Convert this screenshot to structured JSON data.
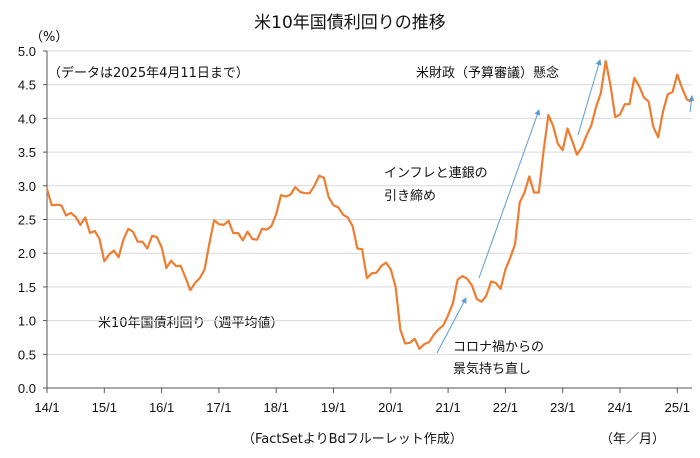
{
  "chart_data": {
    "type": "line",
    "title": "米10年国債利回りの推移",
    "ylabel": "（%）",
    "xlabel": "（年／月）",
    "source": "（FactSetよりBdフルーレット作成）",
    "note": "（データは2025年4月11日まで）",
    "ylim": [
      0,
      5.0
    ],
    "yticks": [
      "0.0",
      "0.5",
      "1.0",
      "1.5",
      "2.0",
      "2.5",
      "3.0",
      "3.5",
      "4.0",
      "4.5",
      "5.0"
    ],
    "xticks": [
      "14/1",
      "15/1",
      "16/1",
      "17/1",
      "18/1",
      "19/1",
      "20/1",
      "21/1",
      "22/1",
      "23/1",
      "24/1",
      "25/1"
    ],
    "grid": true,
    "series": [
      {
        "name": "米10年国債利回り（週平均値）",
        "color": "#ED7D31",
        "start": "2014-01",
        "interval": "month",
        "values": [
          2.95,
          2.71,
          2.72,
          2.71,
          2.56,
          2.6,
          2.54,
          2.42,
          2.53,
          2.3,
          2.33,
          2.21,
          1.88,
          1.98,
          2.04,
          1.94,
          2.2,
          2.36,
          2.32,
          2.17,
          2.17,
          2.07,
          2.26,
          2.24,
          2.09,
          1.78,
          1.89,
          1.81,
          1.81,
          1.64,
          1.45,
          1.56,
          1.63,
          1.76,
          2.14,
          2.49,
          2.43,
          2.42,
          2.48,
          2.3,
          2.3,
          2.19,
          2.32,
          2.21,
          2.2,
          2.36,
          2.35,
          2.4,
          2.58,
          2.86,
          2.84,
          2.87,
          2.98,
          2.91,
          2.89,
          2.89,
          3.0,
          3.15,
          3.12,
          2.83,
          2.71,
          2.68,
          2.57,
          2.53,
          2.4,
          2.07,
          2.06,
          1.63,
          1.7,
          1.71,
          1.81,
          1.86,
          1.76,
          1.5,
          0.87,
          0.66,
          0.67,
          0.73,
          0.58,
          0.65,
          0.68,
          0.79,
          0.87,
          0.93,
          1.08,
          1.26,
          1.61,
          1.66,
          1.62,
          1.52,
          1.32,
          1.28,
          1.37,
          1.58,
          1.56,
          1.47,
          1.76,
          1.93,
          2.13,
          2.75,
          2.9,
          3.14,
          2.9,
          2.9,
          3.52,
          4.05,
          3.89,
          3.62,
          3.53,
          3.85,
          3.66,
          3.46,
          3.57,
          3.75,
          3.9,
          4.17,
          4.38,
          4.85,
          4.5,
          4.02,
          4.06,
          4.21,
          4.21,
          4.6,
          4.48,
          4.31,
          4.25,
          3.87,
          3.72,
          4.1,
          4.36,
          4.39,
          4.65,
          4.45,
          4.28,
          4.25
        ]
      }
    ],
    "annotations": [
      {
        "text_lines": [
          "米10年国債利回り（週平均値）"
        ]
      },
      {
        "text_lines": [
          "コロナ禍からの",
          "景気持ち直し"
        ]
      },
      {
        "text_lines": [
          "インフレと連銀の",
          "引き締め"
        ]
      },
      {
        "text_lines": [
          "米財政（予算審議）懸念"
        ]
      }
    ]
  }
}
